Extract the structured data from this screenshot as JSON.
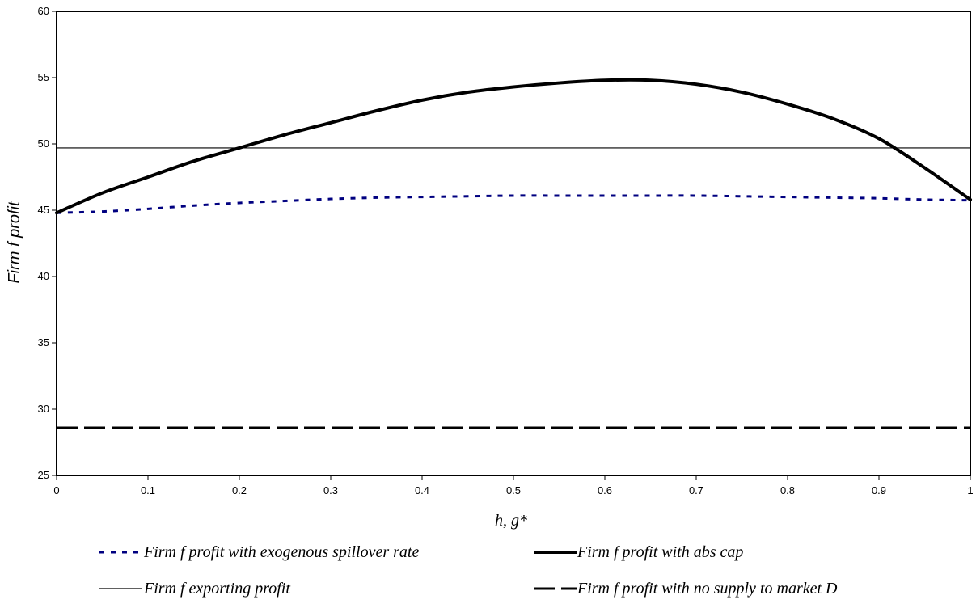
{
  "chart_data": {
    "type": "line",
    "title": "",
    "xlabel": "h, g*",
    "ylabel": "Firm f profit",
    "xlim": [
      0,
      1
    ],
    "ylim": [
      25,
      60
    ],
    "x_ticks": [
      "0",
      "0.1",
      "0.2",
      "0.3",
      "0.4",
      "0.5",
      "0.6",
      "0.7",
      "0.8",
      "0.9",
      "1"
    ],
    "y_ticks": [
      "25",
      "30",
      "35",
      "40",
      "45",
      "50",
      "55",
      "60"
    ],
    "grid": false,
    "legend_position": "bottom",
    "series": [
      {
        "name": "Firm f profit with exogenous spillover rate",
        "color": "#000080",
        "style": "dotted",
        "x": [
          0,
          0.05,
          0.1,
          0.15,
          0.2,
          0.25,
          0.3,
          0.35,
          0.4,
          0.45,
          0.5,
          0.55,
          0.6,
          0.65,
          0.7,
          0.75,
          0.8,
          0.85,
          0.9,
          0.95,
          1.0
        ],
        "y": [
          44.8,
          44.9,
          45.1,
          45.35,
          45.55,
          45.7,
          45.85,
          45.95,
          46.0,
          46.05,
          46.1,
          46.1,
          46.1,
          46.1,
          46.1,
          46.05,
          46.0,
          45.95,
          45.9,
          45.8,
          45.75
        ]
      },
      {
        "name": "Firm f profit with abs cap",
        "color": "#000000",
        "style": "solid-thick",
        "x": [
          0,
          0.05,
          0.1,
          0.15,
          0.2,
          0.25,
          0.3,
          0.35,
          0.4,
          0.45,
          0.5,
          0.55,
          0.6,
          0.65,
          0.7,
          0.75,
          0.8,
          0.85,
          0.9,
          0.95,
          1.0
        ],
        "y": [
          44.8,
          46.3,
          47.5,
          48.7,
          49.7,
          50.7,
          51.6,
          52.5,
          53.3,
          53.9,
          54.3,
          54.6,
          54.8,
          54.8,
          54.5,
          53.9,
          53.0,
          51.9,
          50.4,
          48.2,
          45.8
        ]
      },
      {
        "name": "Firm f exporting profit",
        "color": "#000000",
        "style": "solid-thin",
        "x": [
          0,
          1
        ],
        "y": [
          49.7,
          49.7
        ]
      },
      {
        "name": "Firm f profit with no supply to market D",
        "color": "#000000",
        "style": "dashed",
        "x": [
          0,
          1
        ],
        "y": [
          28.6,
          28.6
        ]
      }
    ]
  }
}
